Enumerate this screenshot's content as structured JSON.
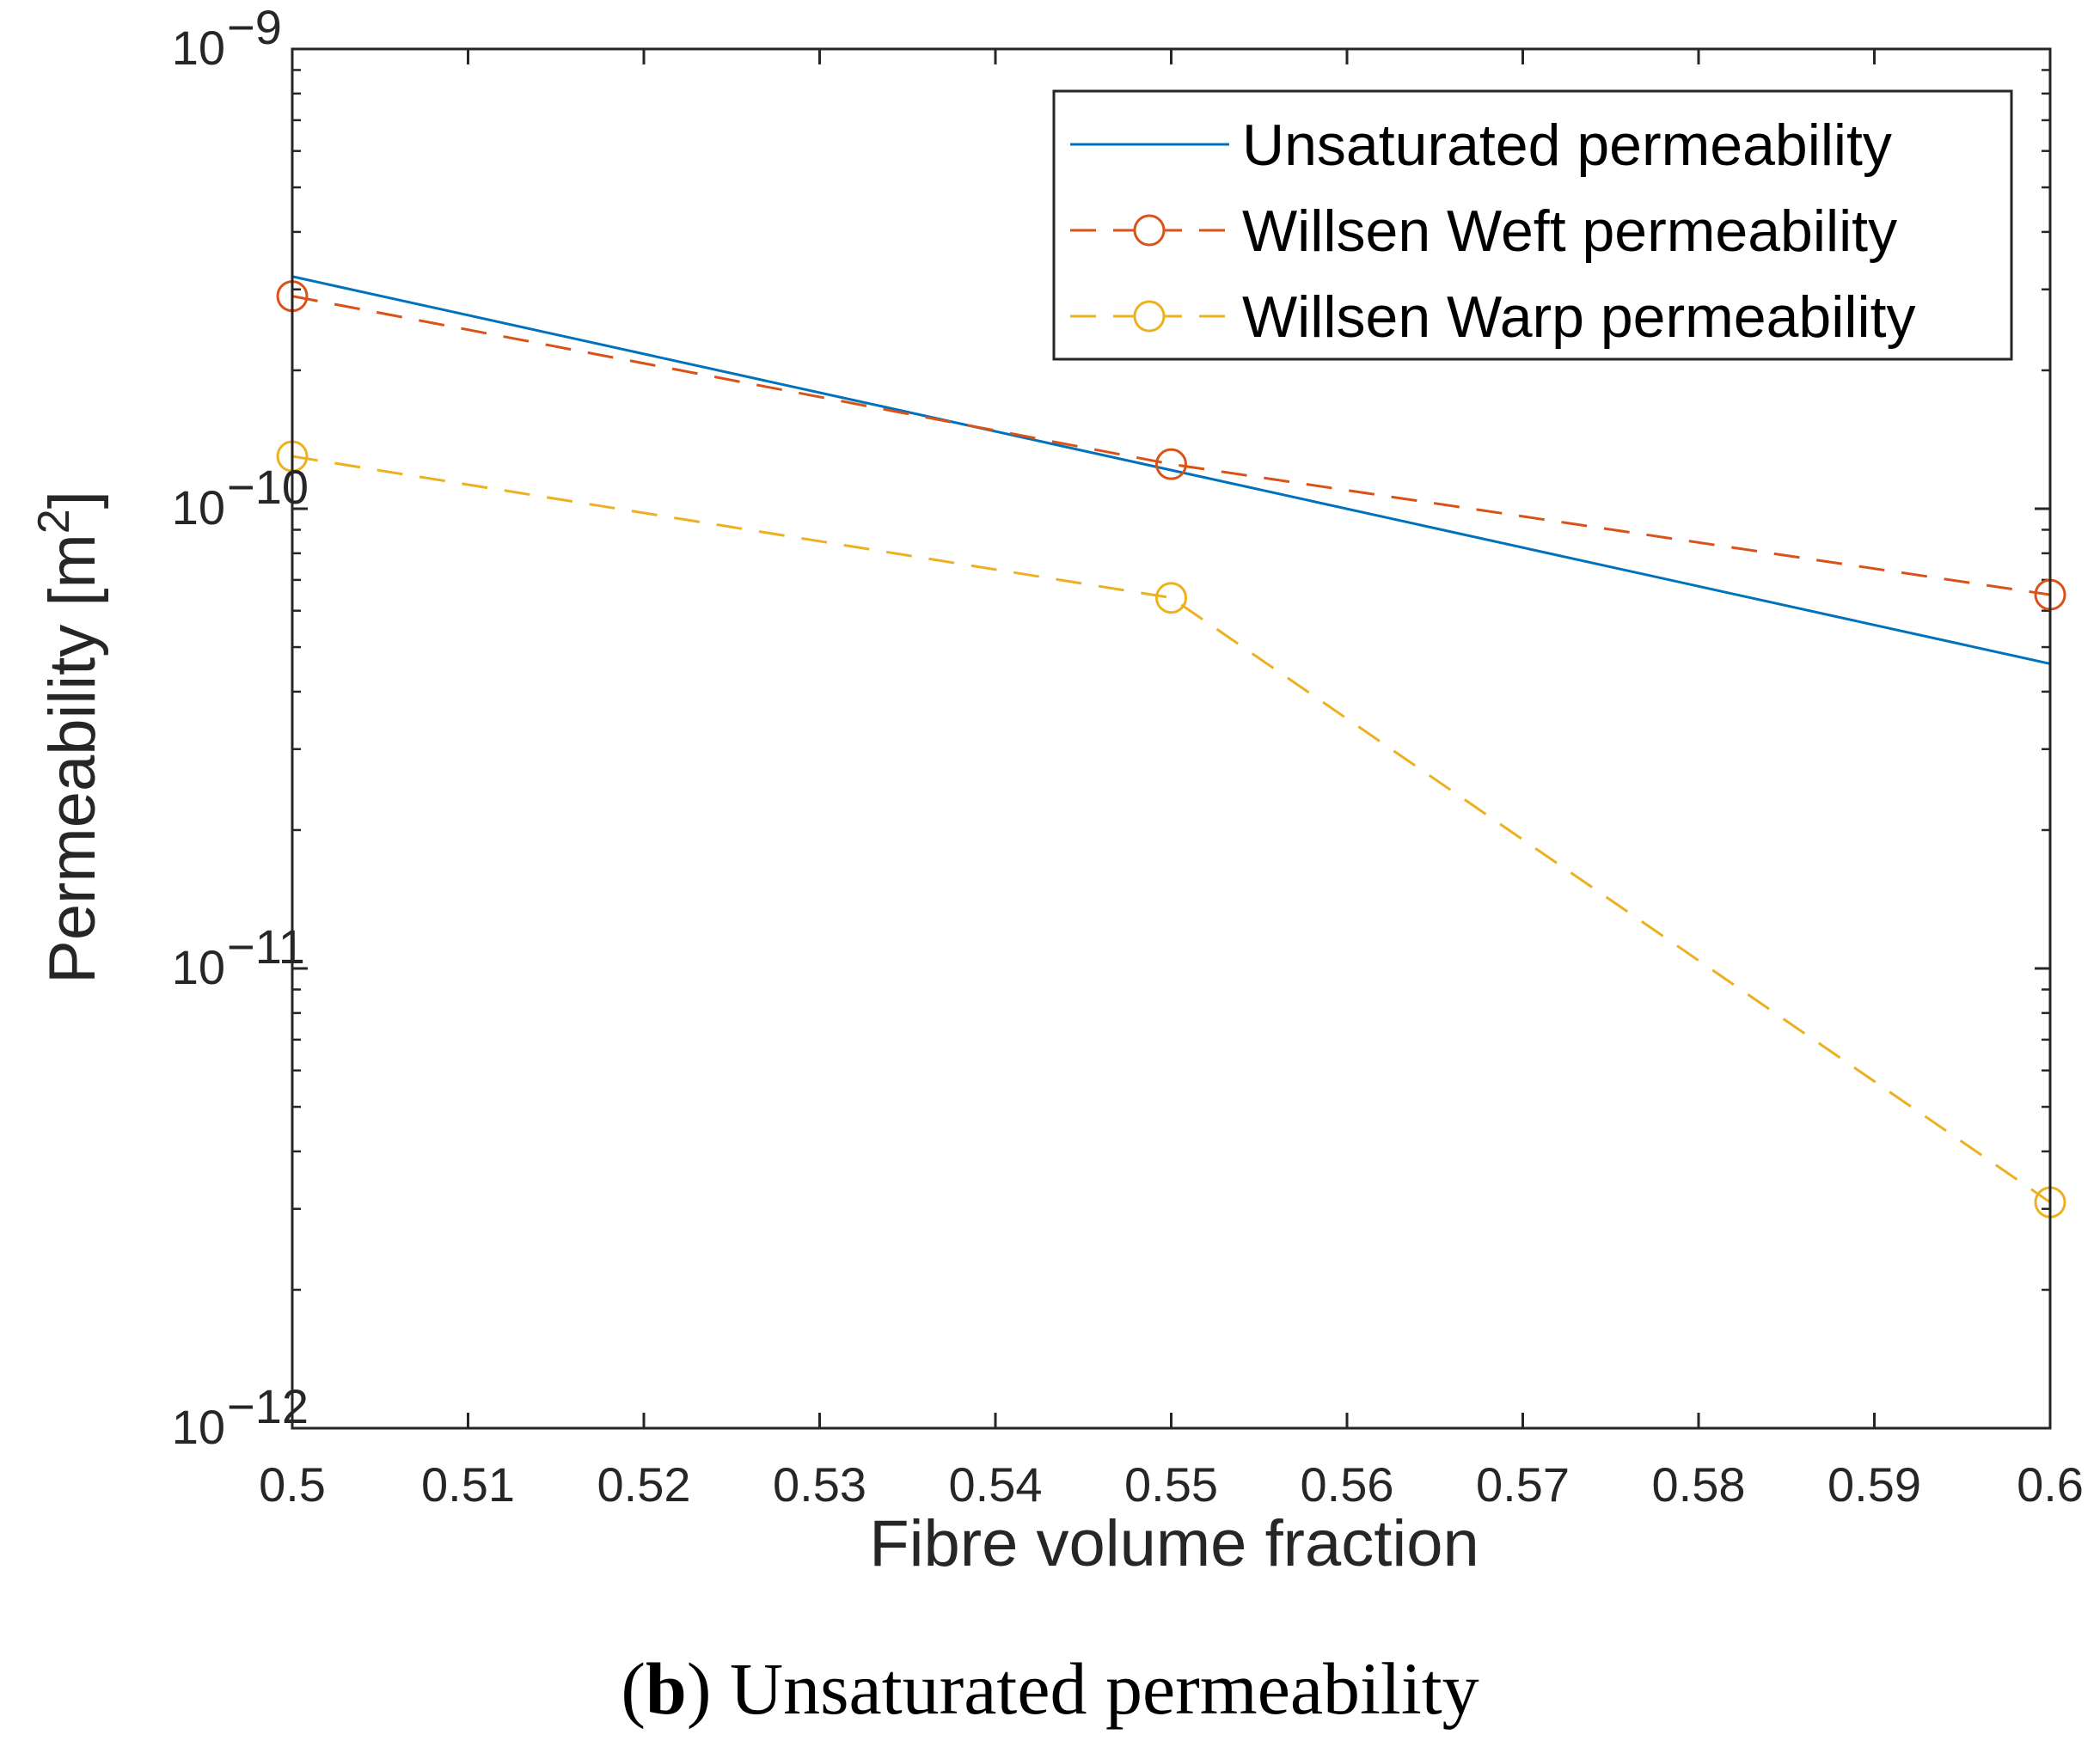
{
  "caption": {
    "open_paren": "(",
    "letter": "b",
    "rest": ") Unsaturated permeability"
  },
  "chart_data": {
    "type": "line",
    "xlabel": "Fibre volume fraction",
    "ylabel": "Permeability [m",
    "ylabel_sup": "2",
    "ylabel_close": "]",
    "yscale": "log",
    "xlim": [
      0.5,
      0.6
    ],
    "ylim": [
      1e-12,
      1e-09
    ],
    "x_ticks": [
      0.5,
      0.51,
      0.52,
      0.53,
      0.54,
      0.55,
      0.56,
      0.57,
      0.58,
      0.59,
      0.6
    ],
    "x_tick_labels": [
      "0.5",
      "0.51",
      "0.52",
      "0.53",
      "0.54",
      "0.55",
      "0.56",
      "0.57",
      "0.58",
      "0.59",
      "0.6"
    ],
    "y_ticks": [
      {
        "base": "10",
        "exp": "−12",
        "value": 1e-12
      },
      {
        "base": "10",
        "exp": "−11",
        "value": 1e-11
      },
      {
        "base": "10",
        "exp": "−10",
        "value": 1e-10
      },
      {
        "base": "10",
        "exp": "−9",
        "value": 1e-09
      }
    ],
    "legend_position": "top-right",
    "series": [
      {
        "name": "Unsaturated permeability",
        "color": "#0072BD",
        "style": "solid",
        "marker": "none",
        "x": [
          0.5,
          0.6
        ],
        "y": [
          3.2e-10,
          4.6e-11
        ]
      },
      {
        "name": "Willsen Weft permeability",
        "color": "#D95319",
        "style": "dashed",
        "marker": "circle",
        "x": [
          0.5,
          0.55,
          0.6
        ],
        "y": [
          2.9e-10,
          1.25e-10,
          6.5e-11
        ]
      },
      {
        "name": "Willsen Warp permeability",
        "color": "#EDB120",
        "style": "dashed",
        "marker": "circle",
        "x": [
          0.5,
          0.55,
          0.6
        ],
        "y": [
          1.3e-10,
          6.4e-11,
          3.1e-12
        ]
      }
    ]
  }
}
